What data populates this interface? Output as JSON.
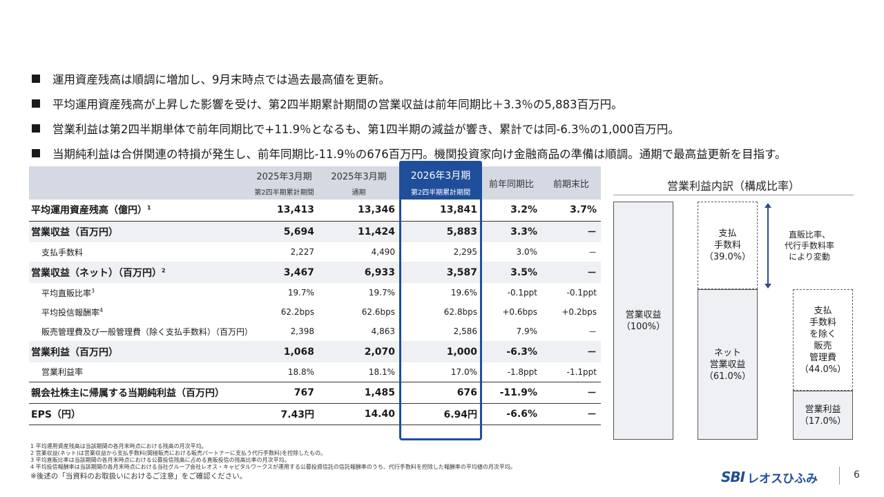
{
  "bullets": [
    "運用資産残高は順調に増加し、9月末時点では過去最高値を更新。",
    "平均運用資産残高が上昇した影響を受け、第2四半期累計期間の営業収益は前年同期比＋3.3％の5,883百万円。",
    "営業利益は第2四半期単体で前年同期比で+11.9％となるも、第1四半期の減益が響き、累計では同-6.3％の1,000百万円。",
    "当期純利益は合併関連の特損が発生し、前年同期比-11.9％の676百万円。機関投資家向け金融商品の準備は順調。通期で最高益更新を目指す。"
  ],
  "table": {
    "headers": [
      {
        "title": "",
        "sub": ""
      },
      {
        "title": "2025年3月期",
        "sub": "第2四半期累計期間"
      },
      {
        "title": "2025年3月期",
        "sub": "通期"
      },
      {
        "title": "2026年3月期",
        "sub": "第2四半期累計期間"
      },
      {
        "title": "前年同期比",
        "sub": ""
      },
      {
        "title": "前期末比",
        "sub": ""
      }
    ],
    "rows": [
      {
        "label": "平均運用資産残高（億円）",
        "sup": "1",
        "values": [
          "13,413",
          "13,346",
          "13,841",
          "3.2%",
          "3.7%"
        ]
      },
      {
        "label": "営業収益（百万円）",
        "sup": "",
        "values": [
          "5,694",
          "11,424",
          "5,883",
          "3.3%",
          "－"
        ]
      },
      {
        "label": "支払手数料",
        "sup": "",
        "values": [
          "2,227",
          "4,490",
          "2,295",
          "3.0%",
          "－"
        ]
      },
      {
        "label": "営業収益（ネット）（百万円）",
        "sup": "2",
        "values": [
          "3,467",
          "6,933",
          "3,587",
          "3.5%",
          "－"
        ]
      },
      {
        "label": "平均直販比率",
        "sup": "3",
        "values": [
          "19.7%",
          "19.7%",
          "19.6%",
          "-0.1ppt",
          "-0.1ppt"
        ]
      },
      {
        "label": "平均投信報酬率",
        "sup": "4",
        "values": [
          "62.2bps",
          "62.6bps",
          "62.8bps",
          "+0.6bps",
          "+0.2bps"
        ]
      },
      {
        "label": "販売管理費及び一般管理費（除く支払手数料）（百万円）",
        "sup": "",
        "values": [
          "2,398",
          "4,863",
          "2,586",
          "7.9%",
          "－"
        ]
      },
      {
        "label": "営業利益（百万円）",
        "sup": "",
        "values": [
          "1,068",
          "2,070",
          "1,000",
          "-6.3%",
          "－"
        ]
      },
      {
        "label": "営業利益率",
        "sup": "",
        "values": [
          "18.8%",
          "18.1%",
          "17.0%",
          "-1.8ppt",
          "-1.1ppt"
        ]
      },
      {
        "label": "親会社株主に帰属する当期純利益（百万円）",
        "sup": "",
        "values": [
          "767",
          "1,485",
          "676",
          "-11.9%",
          "－"
        ]
      },
      {
        "label": "EPS（円）",
        "sup": "",
        "values": [
          "7.43円",
          "14.40",
          "6.94円",
          "-6.6%",
          "－"
        ]
      }
    ]
  },
  "notes": [
    "1 平均運用資産残高は当該期間の各月末時点における残高の月次平均。",
    "2 営業収益(ネット)は営業収益から支払手数料(間接販売における販売パートナーに支払う代行手数料)を控除したもの。",
    "3 平均直販比率は当該期間の各月末時点における公募投信残高に占める直販投信の残高比率の月次平均。",
    "4 平均投信報酬率は当該期間の各月末時点における当社グループ会社レオス・キャピタルワークスが運用する公募投資信託の信託報酬率のうち、代行手数料を控除した報酬率の平均値の月次平均。"
  ],
  "notes_main": "※後述の「当資料のお取扱いにおけるご注意」をご確認ください。",
  "diagram": {
    "title": "営業利益内訳（構成比率）",
    "revenue": [
      "営業収益",
      "（100%）"
    ],
    "fee_top": [
      "支払",
      "手数料",
      "（39.0%）"
    ],
    "net": [
      "ネット",
      "営業収益",
      "（61.0%）"
    ],
    "fee_right": [
      "支払",
      "手数料",
      "を除く",
      "販売",
      "管理費",
      "（44.0%）"
    ],
    "op": [
      "営業利益",
      "（17.0%）"
    ],
    "arrow_note": [
      "直販比率、",
      "代行手数料率",
      "により変動"
    ]
  },
  "logo": {
    "sbi": "SBI",
    "name": "レオスひふみ"
  },
  "page_number": "6"
}
